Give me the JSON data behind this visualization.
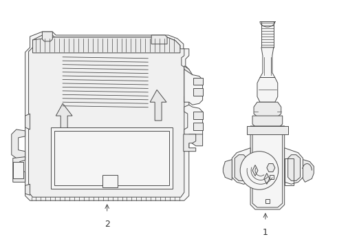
{
  "background_color": "#ffffff",
  "line_color": "#4a4a4a",
  "line_width": 0.7,
  "fill_light": "#f5f5f5",
  "fill_mid": "#ebebeb",
  "label1": "1",
  "label2": "2"
}
